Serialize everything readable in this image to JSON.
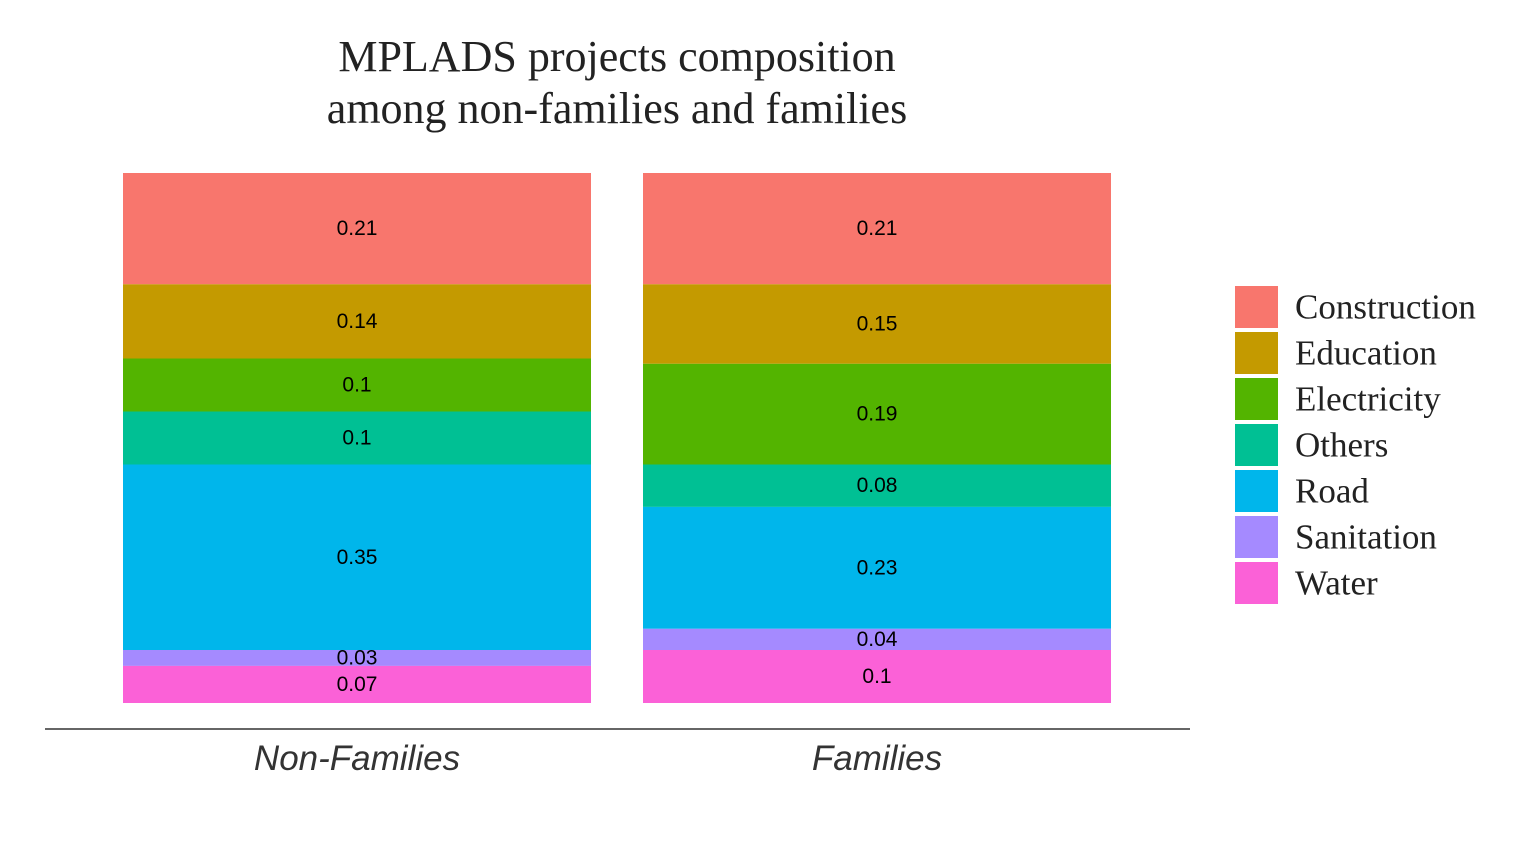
{
  "chart_data": {
    "type": "bar",
    "stacked": true,
    "title": "MPLADS projects composition\namong non-families and families",
    "categories": [
      "Non-Families",
      "Families"
    ],
    "series": [
      {
        "name": "Construction",
        "values": [
          0.21,
          0.21
        ],
        "labels": [
          "0.21",
          "0.21"
        ]
      },
      {
        "name": "Education",
        "values": [
          0.14,
          0.15
        ],
        "labels": [
          "0.14",
          "0.15"
        ]
      },
      {
        "name": "Electricity",
        "values": [
          0.1,
          0.19
        ],
        "labels": [
          "0.1",
          "0.19"
        ]
      },
      {
        "name": "Others",
        "values": [
          0.1,
          0.08
        ],
        "labels": [
          "0.1",
          "0.08"
        ]
      },
      {
        "name": "Road",
        "values": [
          0.35,
          0.23
        ],
        "labels": [
          "0.35",
          "0.23"
        ]
      },
      {
        "name": "Sanitation",
        "values": [
          0.03,
          0.04
        ],
        "labels": [
          "0.03",
          "0.04"
        ]
      },
      {
        "name": "Water",
        "values": [
          0.07,
          0.1
        ],
        "labels": [
          "0.07",
          "0.1"
        ]
      }
    ],
    "colors": {
      "Construction": "#F8766D",
      "Education": "#C49A00",
      "Electricity": "#53B400",
      "Others": "#00C094",
      "Road": "#00B6EB",
      "Sanitation": "#A58AFF",
      "Water": "#FB61D7"
    },
    "xlabel": "",
    "ylabel": "",
    "ylim": [
      0,
      1
    ],
    "grid": false,
    "legend_position": "right",
    "axis_line_color": "#333333"
  }
}
